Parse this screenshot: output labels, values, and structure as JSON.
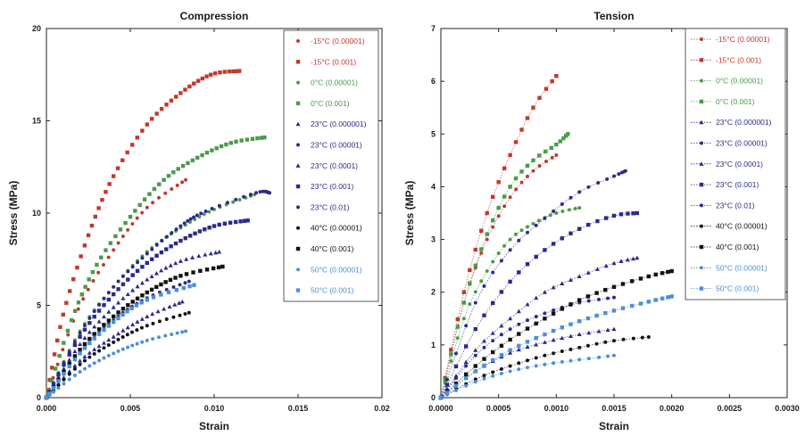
{
  "chart_data": [
    {
      "type": "scatter",
      "title": "Compression",
      "xlabel": "Strain",
      "ylabel": "Stress (MPa)",
      "xlim": [
        0,
        0.02
      ],
      "ylim": [
        0,
        20
      ],
      "xticks": [
        "0.000",
        "0.005",
        "0.010",
        "0.015",
        "0.02"
      ],
      "yticks": [
        "0",
        "5",
        "10",
        "15",
        "20"
      ],
      "grid": false,
      "legend_position": "top-right",
      "series": [
        {
          "name": "-15°C (0.00001)",
          "color": "#c0392b",
          "marker": "circle",
          "x": [
            0.0,
            0.0019,
            0.004,
            0.006,
            0.0083
          ],
          "y": [
            0.0,
            4.8,
            8.0,
            10.3,
            11.8
          ]
        },
        {
          "name": "-15°C (0.001)",
          "color": "#c0392b",
          "marker": "square",
          "x": [
            0.0,
            0.001,
            0.0025,
            0.004,
            0.006,
            0.008,
            0.0098,
            0.0115
          ],
          "y": [
            0.0,
            4.5,
            8.8,
            12.0,
            14.8,
            16.5,
            17.5,
            17.7
          ]
        },
        {
          "name": "0°C (0.00001)",
          "color": "#4a9a4a",
          "marker": "circle",
          "x": [
            0.0,
            0.002,
            0.004,
            0.006,
            0.008,
            0.01,
            0.0124
          ],
          "y": [
            0.0,
            3.6,
            6.0,
            7.9,
            9.2,
            10.2,
            11.0
          ]
        },
        {
          "name": "0°C (0.001)",
          "color": "#4a9a4a",
          "marker": "square",
          "x": [
            0.0,
            0.0015,
            0.003,
            0.005,
            0.007,
            0.009,
            0.011,
            0.013
          ],
          "y": [
            0.0,
            4.2,
            7.2,
            9.8,
            11.8,
            13.0,
            13.8,
            14.1
          ]
        },
        {
          "name": "23°C (0.000001)",
          "color": "#2a2a8a",
          "marker": "triangle",
          "x": [
            0.0,
            0.002,
            0.004,
            0.006,
            0.0081
          ],
          "y": [
            0.0,
            2.0,
            3.3,
            4.4,
            5.2
          ]
        },
        {
          "name": "23°C (0.00001)",
          "color": "#2a2a8a",
          "marker": "circle",
          "x": [
            0.0,
            0.002,
            0.004,
            0.006,
            0.008,
            0.0095,
            0.0125,
            0.0133
          ],
          "y": [
            0.0,
            3.5,
            6.0,
            7.8,
            9.3,
            10.1,
            11.1,
            11.1
          ]
        },
        {
          "name": "23°C (0.0001)",
          "color": "#2a2a8a",
          "marker": "triangle",
          "x": [
            0.0,
            0.002,
            0.004,
            0.006,
            0.008,
            0.0103
          ],
          "y": [
            0.0,
            2.9,
            4.9,
            6.4,
            7.4,
            7.9
          ]
        },
        {
          "name": "23°C (0.001)",
          "color": "#2a2a8a",
          "marker": "square",
          "x": [
            0.0,
            0.002,
            0.004,
            0.006,
            0.008,
            0.01,
            0.012
          ],
          "y": [
            0.0,
            3.3,
            5.6,
            7.3,
            8.5,
            9.3,
            9.6
          ]
        },
        {
          "name": "23°C (0.01)",
          "color": "#2a2a8a",
          "marker": "circle",
          "x": [
            0.0,
            0.002,
            0.004,
            0.006,
            0.0085
          ],
          "y": [
            0.0,
            2.4,
            4.2,
            5.4,
            6.3
          ]
        },
        {
          "name": "40°C (0.00001)",
          "color": "#111111",
          "marker": "circle",
          "x": [
            0.0,
            0.002,
            0.004,
            0.006,
            0.0085
          ],
          "y": [
            0.0,
            1.8,
            3.0,
            3.9,
            4.6
          ]
        },
        {
          "name": "40°C (0.001)",
          "color": "#111111",
          "marker": "square",
          "x": [
            0.0,
            0.002,
            0.004,
            0.006,
            0.008,
            0.0105
          ],
          "y": [
            0.0,
            2.6,
            4.4,
            5.7,
            6.6,
            7.1
          ]
        },
        {
          "name": "50°C (0.00001)",
          "color": "#4a8fd8",
          "marker": "circle",
          "x": [
            0.0,
            0.002,
            0.004,
            0.006,
            0.0083
          ],
          "y": [
            0.0,
            1.4,
            2.4,
            3.1,
            3.6
          ]
        },
        {
          "name": "50°C (0.001)",
          "color": "#4a8fd8",
          "marker": "square",
          "x": [
            0.0,
            0.002,
            0.004,
            0.006,
            0.0088
          ],
          "y": [
            0.0,
            2.4,
            4.1,
            5.3,
            6.1
          ]
        }
      ]
    },
    {
      "type": "scatter",
      "title": "Tension",
      "xlabel": "Strain",
      "ylabel": "Stress (MPa)",
      "xlim": [
        0,
        0.003
      ],
      "ylim": [
        0,
        7
      ],
      "xticks": [
        "0.0000",
        "0.0005",
        "0.0010",
        "0.0015",
        "0.0020",
        "0.0025",
        "0.0030"
      ],
      "yticks": [
        "0",
        "1",
        "2",
        "3",
        "4",
        "5",
        "6",
        "7"
      ],
      "grid": false,
      "legend_position": "top-right",
      "series": [
        {
          "name": "-15°C (0.00001)",
          "color": "#c0392b",
          "marker": "circle",
          "x": [
            0.0,
            0.0002,
            0.0004,
            0.0006,
            0.0008,
            0.001
          ],
          "y": [
            0.0,
            1.8,
            3.0,
            3.8,
            4.3,
            4.6
          ]
        },
        {
          "name": "-15°C (0.001)",
          "color": "#c0392b",
          "marker": "square",
          "x": [
            0.0,
            0.0002,
            0.0004,
            0.0006,
            0.0008,
            0.001
          ],
          "y": [
            0.0,
            2.0,
            3.5,
            4.6,
            5.5,
            6.1
          ]
        },
        {
          "name": "0°C (0.00001)",
          "color": "#4a9a4a",
          "marker": "circle",
          "x": [
            0.0,
            0.0002,
            0.0004,
            0.0006,
            0.0008,
            0.001,
            0.0012
          ],
          "y": [
            0.0,
            1.5,
            2.4,
            3.0,
            3.3,
            3.5,
            3.6
          ]
        },
        {
          "name": "0°C (0.001)",
          "color": "#4a9a4a",
          "marker": "square",
          "x": [
            0.0,
            0.0002,
            0.0004,
            0.0006,
            0.0008,
            0.001,
            0.0011
          ],
          "y": [
            0.0,
            1.8,
            3.1,
            4.0,
            4.5,
            4.8,
            5.0
          ]
        },
        {
          "name": "23°C (0.000001)",
          "color": "#2a2a8a",
          "marker": "triangle",
          "x": [
            0.0,
            0.0003,
            0.0006,
            0.0009,
            0.0012,
            0.0015
          ],
          "y": [
            0.0,
            0.5,
            0.85,
            1.05,
            1.2,
            1.3
          ]
        },
        {
          "name": "23°C (0.00001)",
          "color": "#2a2a8a",
          "marker": "circle",
          "x": [
            0.0,
            0.0003,
            0.0006,
            0.0009,
            0.0012,
            0.0015,
            0.0016
          ],
          "y": [
            0.0,
            1.8,
            2.8,
            3.4,
            3.9,
            4.2,
            4.3
          ]
        },
        {
          "name": "23°C (0.0001)",
          "color": "#2a2a8a",
          "marker": "triangle",
          "x": [
            0.0,
            0.0003,
            0.0006,
            0.0009,
            0.0012,
            0.0015,
            0.0017
          ],
          "y": [
            0.0,
            0.9,
            1.5,
            2.0,
            2.3,
            2.55,
            2.65
          ]
        },
        {
          "name": "23°C (0.001)",
          "color": "#2a2a8a",
          "marker": "square",
          "x": [
            0.0,
            0.0003,
            0.0006,
            0.0009,
            0.0012,
            0.0015,
            0.0017
          ],
          "y": [
            0.0,
            1.3,
            2.2,
            2.8,
            3.2,
            3.45,
            3.5
          ]
        },
        {
          "name": "23°C (0.01)",
          "color": "#2a2a8a",
          "marker": "circle",
          "x": [
            0.0,
            0.0003,
            0.0006,
            0.0009,
            0.0012,
            0.0015
          ],
          "y": [
            0.0,
            0.8,
            1.3,
            1.6,
            1.8,
            1.9
          ]
        },
        {
          "name": "40°C (0.00001)",
          "color": "#111111",
          "marker": "circle",
          "x": [
            0.0,
            0.0003,
            0.0006,
            0.0009,
            0.0012,
            0.0015,
            0.0018
          ],
          "y": [
            0.0,
            0.35,
            0.6,
            0.8,
            0.95,
            1.08,
            1.15
          ]
        },
        {
          "name": "40°C (0.001)",
          "color": "#111111",
          "marker": "square",
          "x": [
            0.0,
            0.0003,
            0.0006,
            0.0009,
            0.0012,
            0.0015,
            0.0018,
            0.002
          ],
          "y": [
            0.0,
            0.6,
            1.1,
            1.5,
            1.85,
            2.1,
            2.3,
            2.4
          ]
        },
        {
          "name": "50°C (0.00001)",
          "color": "#4a8fd8",
          "marker": "circle",
          "x": [
            0.0,
            0.0003,
            0.0006,
            0.0009,
            0.0012,
            0.0015
          ],
          "y": [
            0.0,
            0.3,
            0.5,
            0.63,
            0.72,
            0.8
          ]
        },
        {
          "name": "50°C (0.001)",
          "color": "#4a8fd8",
          "marker": "square",
          "x": [
            0.0,
            0.0003,
            0.0006,
            0.0009,
            0.0012,
            0.0015,
            0.0018,
            0.002
          ],
          "y": [
            0.0,
            0.5,
            0.9,
            1.2,
            1.45,
            1.65,
            1.82,
            1.92
          ]
        }
      ]
    }
  ]
}
